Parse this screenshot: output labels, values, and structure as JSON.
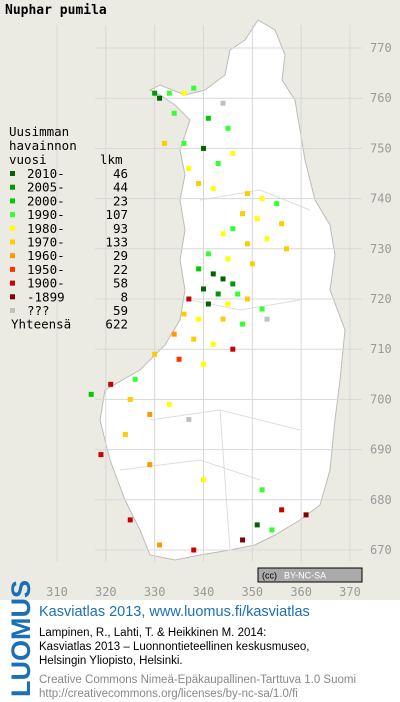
{
  "title": "Nuphar pumila",
  "legend": {
    "heading": [
      "Uusimman",
      "havainnon",
      "vuosi"
    ],
    "count_heading": "lkm",
    "periods": [
      {
        "label": "2010-",
        "count": 46,
        "color": "#006400"
      },
      {
        "label": "2005-",
        "count": 44,
        "color": "#009900"
      },
      {
        "label": "2000-",
        "count": 23,
        "color": "#00cc00"
      },
      {
        "label": "1990-",
        "count": 107,
        "color": "#33ff33"
      },
      {
        "label": "1980-",
        "count": 93,
        "color": "#ffff00"
      },
      {
        "label": "1970-",
        "count": 133,
        "color": "#ffcc00"
      },
      {
        "label": "1960-",
        "count": 29,
        "color": "#ff9900"
      },
      {
        "label": "1950-",
        "count": 22,
        "color": "#ff3300"
      },
      {
        "label": "1900-",
        "count": 58,
        "color": "#cc0000"
      },
      {
        "label": "-1899",
        "count": 8,
        "color": "#800000"
      },
      {
        "label": "???",
        "count": 59,
        "color": "#c0c0c0"
      }
    ],
    "total_label": "Yhteensä",
    "total": 622
  },
  "x_axis": {
    "ticks": [
      310,
      320,
      330,
      340,
      350,
      360,
      370
    ]
  },
  "y_axis": {
    "ticks": [
      770,
      760,
      750,
      740,
      730,
      720,
      710,
      700,
      690,
      680,
      670
    ]
  },
  "squares": [
    [
      330,
      761,
      1
    ],
    [
      331,
      760,
      0
    ],
    [
      333,
      761,
      3
    ],
    [
      336,
      761,
      4
    ],
    [
      338,
      762,
      3
    ],
    [
      344,
      759,
      10
    ],
    [
      334,
      757,
      3
    ],
    [
      341,
      756,
      2
    ],
    [
      345,
      754,
      3
    ],
    [
      332,
      751,
      5
    ],
    [
      336,
      751,
      3
    ],
    [
      340,
      750,
      0
    ],
    [
      346,
      749,
      4
    ],
    [
      343,
      747,
      3
    ],
    [
      337,
      746,
      4
    ],
    [
      339,
      743,
      5
    ],
    [
      342,
      742,
      4
    ],
    [
      349,
      741,
      5
    ],
    [
      352,
      740,
      4
    ],
    [
      355,
      739,
      3
    ],
    [
      348,
      737,
      5
    ],
    [
      351,
      736,
      4
    ],
    [
      356,
      735,
      5
    ],
    [
      346,
      734,
      3
    ],
    [
      344,
      733,
      4
    ],
    [
      349,
      731,
      5
    ],
    [
      353,
      732,
      4
    ],
    [
      357,
      730,
      5
    ],
    [
      341,
      729,
      3
    ],
    [
      345,
      728,
      4
    ],
    [
      350,
      727,
      5
    ],
    [
      339,
      726,
      2
    ],
    [
      342,
      725,
      0
    ],
    [
      344,
      724,
      0
    ],
    [
      346,
      723,
      1
    ],
    [
      340,
      722,
      0
    ],
    [
      343,
      721,
      1
    ],
    [
      347,
      721,
      3
    ],
    [
      337,
      720,
      8
    ],
    [
      341,
      719,
      0
    ],
    [
      345,
      719,
      4
    ],
    [
      349,
      720,
      5
    ],
    [
      352,
      718,
      3
    ],
    [
      336,
      717,
      5
    ],
    [
      339,
      716,
      4
    ],
    [
      344,
      716,
      5
    ],
    [
      348,
      715,
      3
    ],
    [
      353,
      716,
      10
    ],
    [
      334,
      713,
      6
    ],
    [
      338,
      712,
      5
    ],
    [
      342,
      711,
      4
    ],
    [
      346,
      710,
      8
    ],
    [
      330,
      709,
      5
    ],
    [
      335,
      708,
      7
    ],
    [
      340,
      707,
      4
    ],
    [
      326,
      704,
      3
    ],
    [
      321,
      703,
      8
    ],
    [
      317,
      701,
      2
    ],
    [
      325,
      700,
      5
    ],
    [
      333,
      699,
      4
    ],
    [
      329,
      697,
      6
    ],
    [
      337,
      696,
      10
    ],
    [
      324,
      693,
      5
    ],
    [
      319,
      689,
      8
    ],
    [
      329,
      687,
      6
    ],
    [
      340,
      684,
      4
    ],
    [
      352,
      682,
      3
    ],
    [
      356,
      678,
      8
    ],
    [
      351,
      675,
      0
    ],
    [
      354,
      674,
      3
    ],
    [
      348,
      672,
      9
    ],
    [
      338,
      670,
      8
    ],
    [
      331,
      671,
      6
    ],
    [
      325,
      676,
      8
    ],
    [
      361,
      677,
      9
    ]
  ],
  "footer": {
    "brand": "LUOMUS",
    "headline": "Kasviatlas 2013, www.luomus.fi/kasviatlas",
    "citation": [
      "Lampinen, R., Lahti, T. & Heikkinen M. 2014:",
      "Kasviatlas 2013 – Luonnontieteellinen keskusmuseo,",
      "Helsingin Yliopisto, Helsinki."
    ],
    "license": [
      "Creative Commons Nimeä-Epäkaupallinen-Tarttuva 1.0 Suomi",
      "http://creativecommons.org/licenses/by-nc-sa/1.0/fi"
    ],
    "cc_badge": [
      "(cc)",
      "BY-NC-SA"
    ]
  }
}
